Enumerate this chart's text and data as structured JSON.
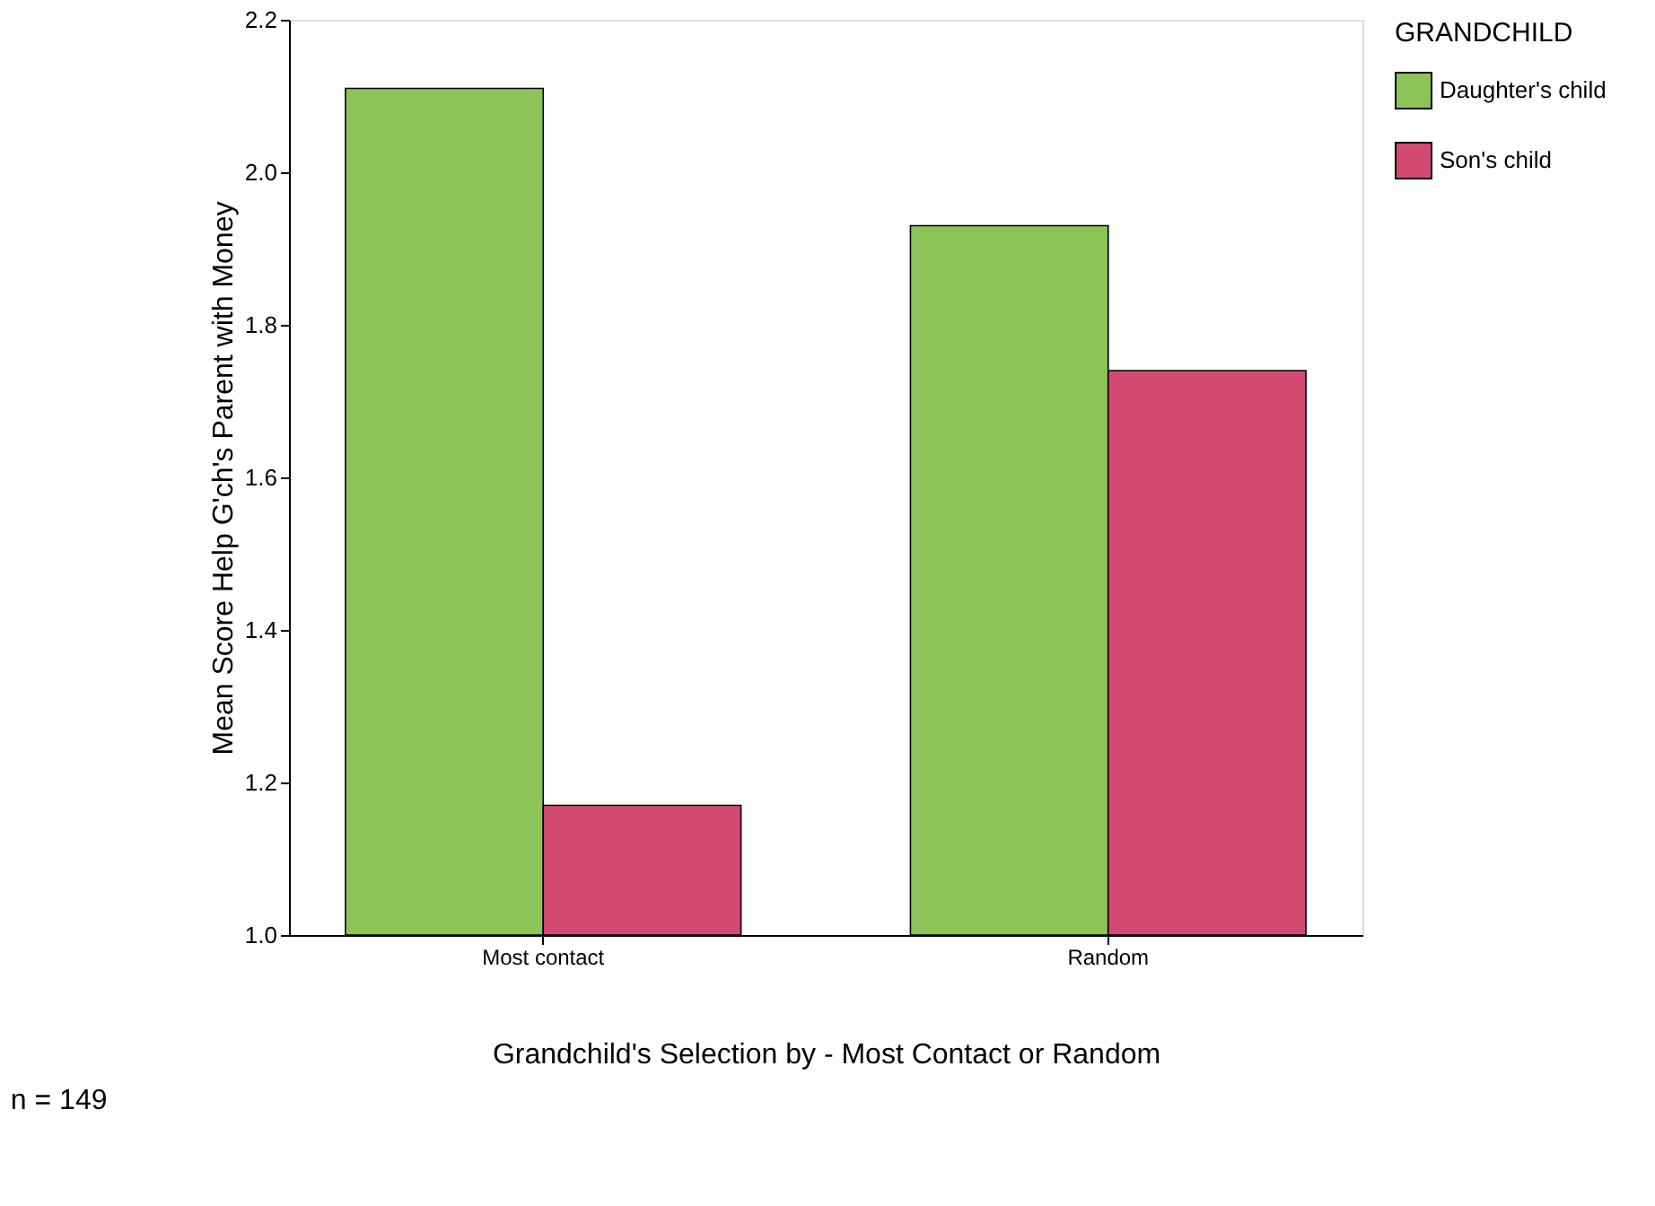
{
  "chart_data": {
    "type": "bar",
    "xlabel": "Grandchild's Selection by - Most Contact or Random",
    "ylabel": "Mean Score Help G'ch's Parent with Money",
    "legend_title": "GRANDCHILD",
    "categories": [
      "Most contact",
      "Random"
    ],
    "series": [
      {
        "name": "Daughter's child",
        "color": "#8cc45a",
        "values": [
          2.11,
          1.93
        ]
      },
      {
        "name": "Son's child",
        "color": "#d24a72",
        "values": [
          1.17,
          1.74
        ]
      }
    ],
    "ylim": [
      1.0,
      2.2
    ],
    "yticks": [
      {
        "value": 1.0,
        "label": "1.0"
      },
      {
        "value": 1.2,
        "label": "1.2"
      },
      {
        "value": 1.4,
        "label": "1.4"
      },
      {
        "value": 1.6,
        "label": "1.6"
      },
      {
        "value": 1.8,
        "label": "1.8"
      },
      {
        "value": 2.0,
        "label": "2.0"
      },
      {
        "value": 2.2,
        "label": "2.2"
      }
    ],
    "grid": false,
    "legend": "right",
    "annotations": [
      "n = 149"
    ]
  }
}
